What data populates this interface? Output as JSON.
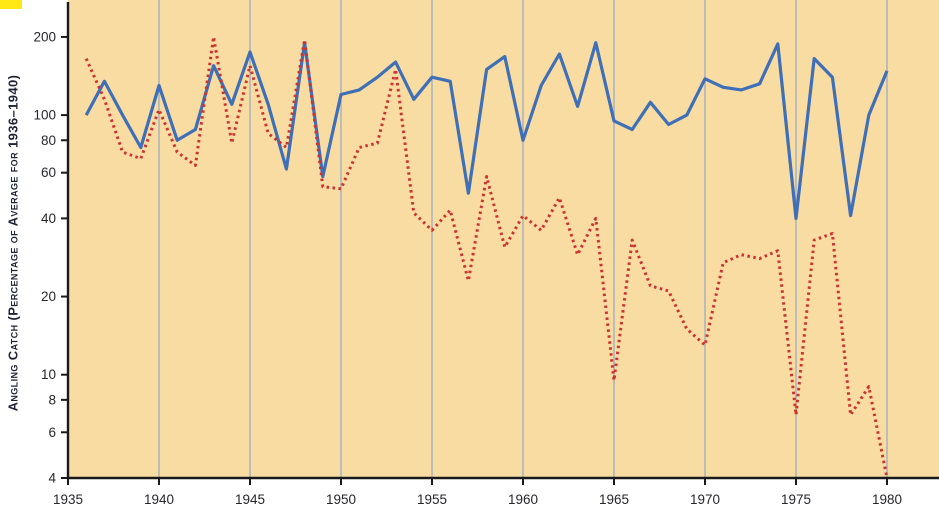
{
  "page": {
    "background": "#ffffff"
  },
  "corner_mark": {
    "color": "#ffe815"
  },
  "chart_data": {
    "type": "line",
    "title": "",
    "xlabel": "",
    "ylabel": "Angling Catch (Percentage of Average for 1936–1940)",
    "y_scale": "log",
    "ylim": [
      4,
      230
    ],
    "xlim": [
      1935,
      1980
    ],
    "grid": "vertical gridlines at 5-year intervals",
    "legend_position": "none",
    "x_ticks": [
      1935,
      1940,
      1945,
      1950,
      1955,
      1960,
      1965,
      1970,
      1975,
      1980
    ],
    "y_ticks": [
      200,
      100,
      80,
      60,
      40,
      20,
      10,
      8,
      6,
      4
    ],
    "x": [
      1936,
      1937,
      1938,
      1939,
      1940,
      1941,
      1942,
      1943,
      1944,
      1945,
      1946,
      1947,
      1948,
      1949,
      1950,
      1951,
      1952,
      1953,
      1954,
      1955,
      1956,
      1957,
      1958,
      1959,
      1960,
      1961,
      1962,
      1963,
      1964,
      1965,
      1966,
      1967,
      1968,
      1969,
      1970,
      1971,
      1972,
      1973,
      1974,
      1975,
      1976,
      1977,
      1978,
      1979,
      1980
    ],
    "series": [
      {
        "name": "blue solid line",
        "color": "#3e6fb7",
        "style": "solid",
        "values": [
          100,
          135,
          100,
          75,
          130,
          80,
          88,
          155,
          110,
          175,
          110,
          62,
          190,
          58,
          120,
          125,
          140,
          160,
          115,
          140,
          135,
          50,
          150,
          168,
          80,
          130,
          172,
          108,
          190,
          95,
          88,
          112,
          92,
          100,
          138,
          128,
          125,
          132,
          188,
          40,
          165,
          140,
          41,
          100,
          148
        ]
      },
      {
        "name": "red dashed line",
        "color": "#cc3333",
        "style": "dashed",
        "values": [
          165,
          115,
          72,
          68,
          105,
          72,
          64,
          200,
          78,
          155,
          85,
          75,
          195,
          53,
          52,
          75,
          78,
          150,
          42,
          36,
          43,
          23,
          58,
          31,
          41,
          36,
          48,
          29,
          40,
          9.5,
          33,
          22,
          21,
          15,
          13,
          27,
          29,
          28,
          30,
          7,
          33,
          35,
          7,
          9,
          4
        ]
      }
    ],
    "colors": {
      "plot_background": "#f8dca2",
      "gridline": "#93a9c6",
      "axis": "#1a1a1a",
      "tick_label": "#26262e",
      "axis_label": "#1d2436"
    }
  }
}
